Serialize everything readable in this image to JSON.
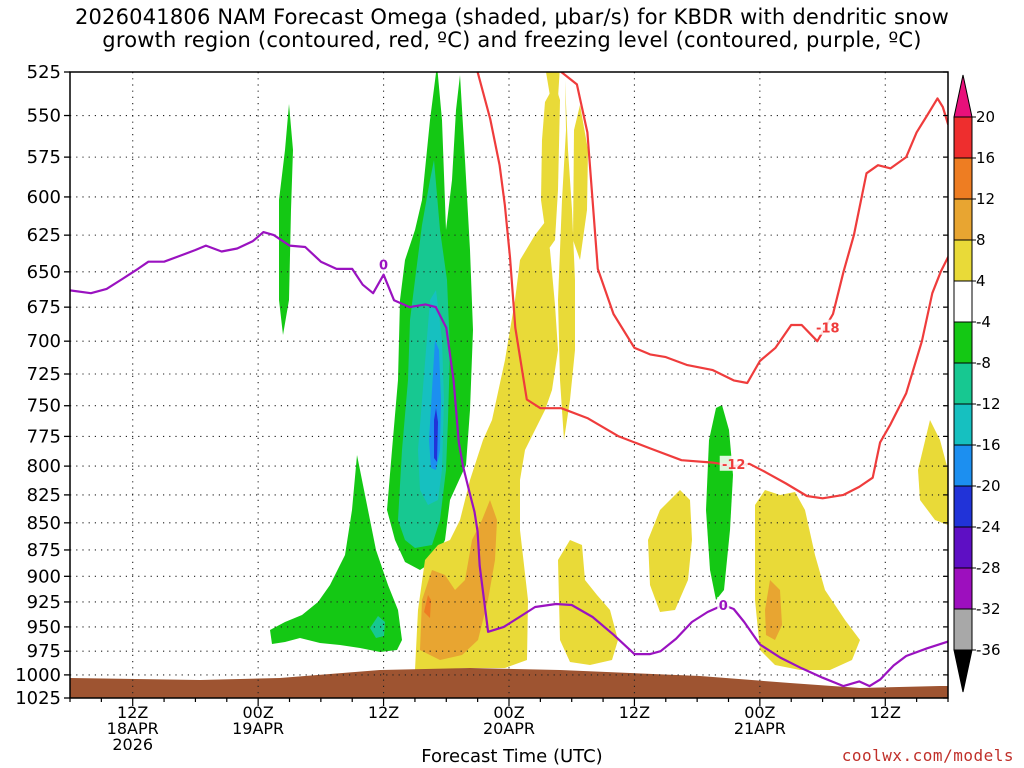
{
  "title": {
    "line1": "2026041806 NAM Forecast Omega (shaded, μbar/s) for KBDR with dendritic snow",
    "line2": "growth region (contoured, red, ºC) and freezing level (contoured, purple, ºC)"
  },
  "xlabel": "Forecast Time (UTC)",
  "credit": "coolwx.com/models",
  "chart_data": {
    "type": "contour",
    "title": "2026041806 NAM Forecast Omega (shaded, μbar/s) for KBDR with dendritic snow growth region (contoured, red, ºC) and freezing level (contoured, purple, ºC)",
    "xlabel": "Forecast Time (UTC)",
    "ylabel": "",
    "x_hours_since_2026041800": {
      "min": 6,
      "max": 90
    },
    "y_pressure_mb": {
      "min": 525,
      "max": 1025,
      "inverted": true
    },
    "y_ticks": [
      "525",
      "550",
      "575",
      "600",
      "625",
      "650",
      "675",
      "700",
      "725",
      "750",
      "775",
      "800",
      "825",
      "850",
      "875",
      "900",
      "925",
      "950",
      "975",
      "1000",
      "1025"
    ],
    "x_ticks": [
      {
        "hour": 12,
        "lines": [
          "12Z",
          "18APR",
          "2026"
        ]
      },
      {
        "hour": 24,
        "lines": [
          "00Z",
          "19APR"
        ]
      },
      {
        "hour": 36,
        "lines": [
          "12Z"
        ]
      },
      {
        "hour": 48,
        "lines": [
          "00Z",
          "20APR"
        ]
      },
      {
        "hour": 60,
        "lines": [
          "12Z"
        ]
      },
      {
        "hour": 72,
        "lines": [
          "00Z",
          "21APR"
        ]
      },
      {
        "hour": 84,
        "lines": [
          "12Z"
        ]
      }
    ],
    "grid": true,
    "colorbar": {
      "labels": [
        "20",
        "16",
        "12",
        "8",
        "4",
        "-4",
        "-8",
        "-12",
        "-16",
        "-20",
        "-24",
        "-28",
        "-32",
        "-36"
      ],
      "bins": [
        {
          "from": 16,
          "to": 20,
          "color": "#ee2e2e"
        },
        {
          "from": 12,
          "to": 16,
          "color": "#ee7d22"
        },
        {
          "from": 8,
          "to": 12,
          "color": "#e8a531"
        },
        {
          "from": 4,
          "to": 8,
          "color": "#e9da38"
        },
        {
          "from": -4,
          "to": 4,
          "color": "#ffffff"
        },
        {
          "from": -8,
          "to": -4,
          "color": "#14c814"
        },
        {
          "from": -12,
          "to": -8,
          "color": "#17c891"
        },
        {
          "from": -16,
          "to": -12,
          "color": "#16c0c0"
        },
        {
          "from": -20,
          "to": -16,
          "color": "#1c8ff0"
        },
        {
          "from": -24,
          "to": -20,
          "color": "#2133d8"
        },
        {
          "from": -28,
          "to": -24,
          "color": "#5e0fc4"
        },
        {
          "from": -32,
          "to": -28,
          "color": "#9d0fbe"
        },
        {
          "from": -36,
          "to": -32,
          "color": "#a8a8a8"
        }
      ],
      "above_color": "#e8107a",
      "below_color": "#000000"
    },
    "contour_labels": [
      {
        "text": "-18",
        "hour": 78.5,
        "p": 690,
        "color": "#ef3c3c"
      },
      {
        "text": "-12",
        "hour": 69.5,
        "p": 798,
        "color": "#ef3c3c"
      },
      {
        "text": "0",
        "hour": 36,
        "p": 645,
        "color": "#9a12c0"
      },
      {
        "text": "0",
        "hour": 68.5,
        "p": 928,
        "color": "#9a12c0"
      }
    ],
    "freezing_level_0C": {
      "name": "0 ºC",
      "color": "#9a12c0",
      "hour": [
        6,
        8,
        9.5,
        11,
        12.5,
        13.5,
        15,
        16.5,
        18,
        19,
        20.5,
        22,
        23.5,
        24.5,
        25.5,
        27,
        28.5,
        30,
        31.5,
        33,
        34,
        35,
        36,
        37,
        38.5,
        40,
        41,
        42,
        42.7,
        43.2,
        43.6,
        44.2,
        44.7,
        45,
        45.2,
        46,
        47.5,
        49,
        50.5,
        52.5,
        54,
        56,
        58,
        60,
        61.5,
        62.5,
        64,
        65.5,
        67,
        68.5,
        69.5,
        70.5,
        72,
        74,
        76,
        78,
        80,
        81.5,
        82.5,
        83.5,
        84.8,
        86,
        88,
        90
      ],
      "p": [
        663,
        665,
        662,
        655,
        648,
        643,
        643,
        639,
        635,
        632,
        636,
        634,
        629,
        623,
        625,
        632,
        633,
        643,
        648,
        648,
        659,
        665,
        652,
        670,
        675,
        673,
        675,
        690,
        730,
        780,
        800,
        822,
        840,
        858,
        890,
        955,
        950,
        940,
        930,
        927,
        928,
        940,
        958,
        978,
        978,
        975,
        962,
        945,
        935,
        928,
        932,
        945,
        968,
        982,
        993,
        1003,
        1012,
        1007,
        1012,
        1005,
        990,
        980,
        972,
        965
      ]
    },
    "dgz_-12C": {
      "name": "-12 ºC",
      "color": "#ef3c3c",
      "hour": [
        45,
        46.2,
        47.1,
        47.6,
        48.1,
        48.6,
        49.7,
        51,
        53,
        55.5,
        58.5,
        61.5,
        64.5,
        67.5,
        69.5,
        71,
        72.5,
        74.5,
        76.5,
        78,
        80,
        81.5,
        82.8,
        83.5,
        84.5,
        86,
        87.5,
        88.5,
        89.3,
        90
      ],
      "p": [
        525,
        552,
        580,
        605,
        640,
        690,
        745,
        752,
        752,
        760,
        775,
        785,
        795,
        797,
        800,
        798,
        805,
        815,
        826,
        828,
        825,
        818,
        810,
        780,
        765,
        740,
        700,
        665,
        650,
        640
      ]
    },
    "dgz_-18C": {
      "name": "-18 ºC",
      "color": "#ef3c3c",
      "hour": [
        53,
        54.5,
        55.5,
        56.5,
        58,
        60,
        61.5,
        63,
        65,
        67.5,
        69.5,
        70.8,
        72,
        73.5,
        75,
        76,
        77.5,
        79,
        80,
        81,
        82.2,
        83.3,
        84.5,
        86,
        87,
        88,
        89,
        89.5,
        90
      ],
      "p": [
        525,
        532,
        560,
        648,
        680,
        705,
        710,
        712,
        718,
        722,
        730,
        732,
        715,
        705,
        688,
        688,
        700,
        680,
        650,
        625,
        585,
        580,
        582,
        575,
        560,
        550,
        540,
        545,
        555
      ]
    }
  }
}
